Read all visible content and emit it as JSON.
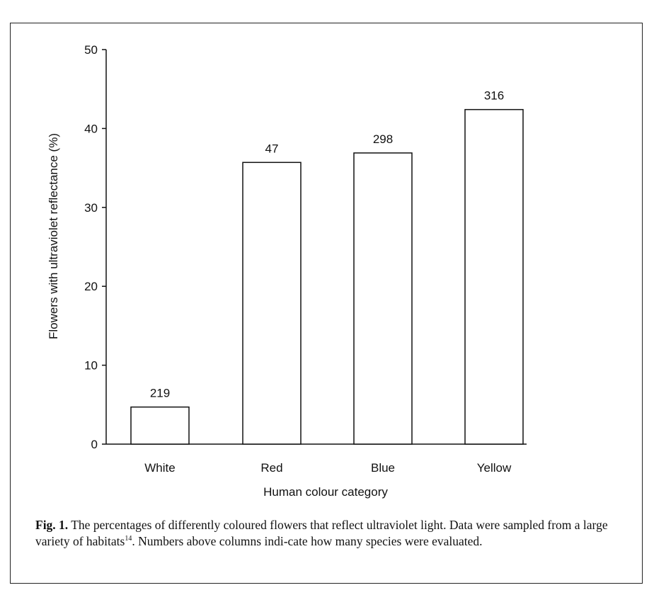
{
  "chart_data": {
    "type": "bar",
    "categories": [
      "White",
      "Red",
      "Blue",
      "Yellow"
    ],
    "values": [
      4.7,
      35.7,
      36.9,
      42.4
    ],
    "data_labels": [
      "219",
      "47",
      "298",
      "316"
    ],
    "xlabel": "Human colour category",
    "ylabel": "Flowers with ultraviolet reflectance (%)",
    "ylim": [
      0,
      50
    ],
    "yticks": [
      0,
      10,
      20,
      30,
      40,
      50
    ],
    "grid": false,
    "bar_fill": "#ffffff",
    "bar_stroke": "#111111"
  },
  "caption": {
    "label": "Fig. 1.",
    "text_before_ref": " The percentages of differently coloured flowers that reflect ultraviolet light. Data were sampled from a large variety of habitats",
    "ref": "14",
    "text_after_ref": ". Numbers above columns indi-cate how many species were evaluated."
  }
}
